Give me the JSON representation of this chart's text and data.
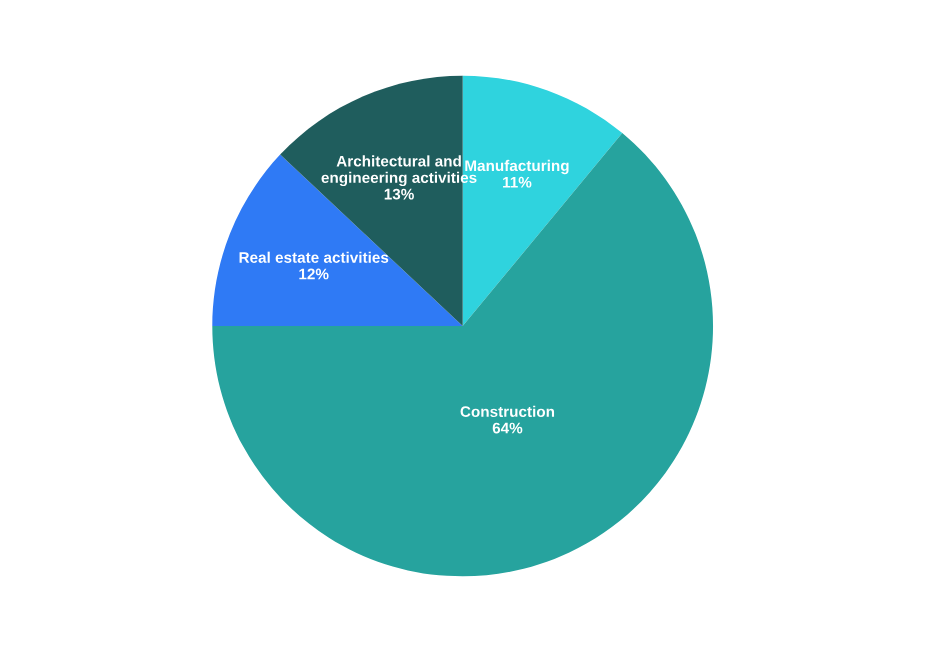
{
  "chart_data": {
    "type": "pie",
    "categories": [
      "Manufacturing",
      "Construction",
      "Real estate activities",
      "Architectural and engineering activities"
    ],
    "values": [
      11,
      64,
      12,
      13
    ],
    "colors": [
      "#2fd3de",
      "#26a39e",
      "#2f7af5",
      "#1f5d5d"
    ],
    "value_labels": [
      "11%",
      "64%",
      "12%",
      "13%"
    ],
    "legend": false
  }
}
